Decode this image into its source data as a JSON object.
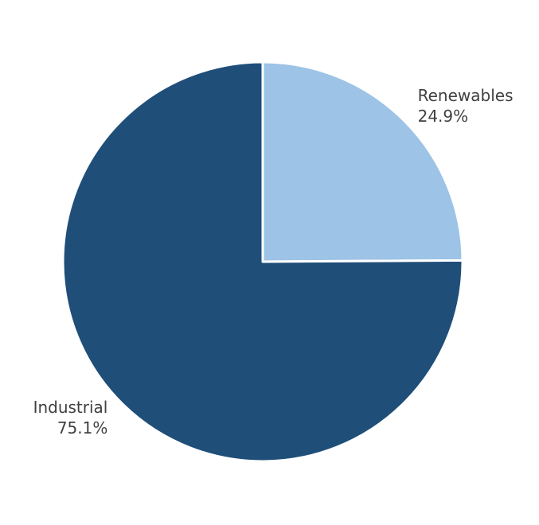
{
  "chart_data": {
    "type": "pie",
    "title": "",
    "start": "top",
    "direction": "clockwise",
    "slices": [
      {
        "label": "Renewables",
        "pct_label": "24.9%",
        "value": 24.9,
        "color": "#9dc3e6"
      },
      {
        "label": "Industrial",
        "pct_label": "75.1%",
        "value": 75.1,
        "color": "#1f4e79"
      }
    ],
    "edge_color": "#ffffff",
    "legend": "none"
  }
}
